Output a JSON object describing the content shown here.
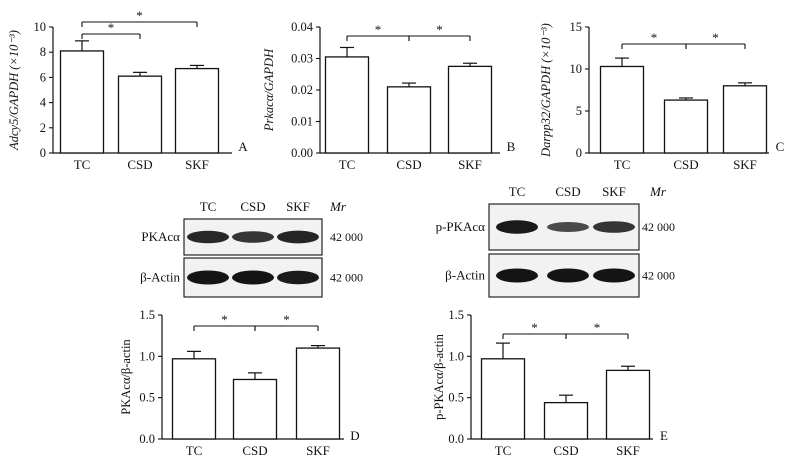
{
  "chart_data": [
    {
      "type": "bar",
      "panel_label": "A",
      "ylabel": "Adcy5/GAPDH (×10⁻³)",
      "categories": [
        "TC",
        "CSD",
        "SKF"
      ],
      "values": [
        8.1,
        6.1,
        6.7
      ],
      "errors": [
        0.8,
        0.3,
        0.25
      ],
      "ylim": [
        0,
        10
      ],
      "yticks": [
        "0",
        "2",
        "4",
        "6",
        "8",
        "10"
      ],
      "significance": [
        {
          "from": 0,
          "to": 1,
          "label": "*"
        },
        {
          "from": 0,
          "to": 2,
          "label": "*"
        }
      ]
    },
    {
      "type": "bar",
      "panel_label": "B",
      "ylabel": "Prkacα/GAPDH",
      "categories": [
        "TC",
        "CSD",
        "SKF"
      ],
      "values": [
        0.0305,
        0.021,
        0.0275
      ],
      "errors": [
        0.003,
        0.0012,
        0.001
      ],
      "ylim": [
        0,
        0.04
      ],
      "yticks": [
        "0.00",
        "0.01",
        "0.02",
        "0.03",
        "0.04"
      ],
      "significance": [
        {
          "from": 0,
          "to": 1,
          "label": "*"
        },
        {
          "from": 1,
          "to": 2,
          "label": "*"
        }
      ]
    },
    {
      "type": "bar",
      "panel_label": "C",
      "ylabel": "Darpp32/GAPDH (×10⁻³)",
      "categories": [
        "TC",
        "CSD",
        "SKF"
      ],
      "values": [
        10.3,
        6.3,
        8.0
      ],
      "errors": [
        1.0,
        0.25,
        0.35
      ],
      "ylim": [
        0,
        15
      ],
      "yticks": [
        "0",
        "5",
        "10",
        "15"
      ],
      "significance": [
        {
          "from": 0,
          "to": 1,
          "label": "*"
        },
        {
          "from": 1,
          "to": 2,
          "label": "*"
        }
      ]
    },
    {
      "type": "bar",
      "panel_label": "D",
      "ylabel": "PKAcα/β-actin",
      "categories": [
        "TC",
        "CSD",
        "SKF"
      ],
      "values": [
        0.97,
        0.72,
        1.1
      ],
      "errors": [
        0.09,
        0.08,
        0.03
      ],
      "ylim": [
        0,
        1.5
      ],
      "yticks": [
        "0.0",
        "0.5",
        "1.0",
        "1.5"
      ],
      "significance": [
        {
          "from": 0,
          "to": 1,
          "label": "*"
        },
        {
          "from": 1,
          "to": 2,
          "label": "*"
        }
      ]
    },
    {
      "type": "bar",
      "panel_label": "E",
      "ylabel": "p-PKAcα/β-actin",
      "categories": [
        "TC",
        "CSD",
        "SKF"
      ],
      "values": [
        0.97,
        0.44,
        0.83
      ],
      "errors": [
        0.19,
        0.09,
        0.05
      ],
      "ylim": [
        0,
        1.5
      ],
      "yticks": [
        "0.0",
        "0.5",
        "1.0",
        "1.5"
      ],
      "significance": [
        {
          "from": 0,
          "to": 1,
          "label": "*"
        },
        {
          "from": 1,
          "to": 2,
          "label": "*"
        }
      ]
    }
  ],
  "blots": [
    {
      "id": "D",
      "lanes": [
        "TC",
        "CSD",
        "SKF"
      ],
      "mr_label": "Mr",
      "bands": [
        {
          "name": "PKAcα",
          "mr": "42 000",
          "intensity": [
            0.82,
            0.7,
            0.85
          ]
        },
        {
          "name": "β-Actin",
          "mr": "42 000",
          "intensity": [
            1.0,
            1.0,
            0.95
          ]
        }
      ]
    },
    {
      "id": "E",
      "lanes": [
        "TC",
        "CSD",
        "SKF"
      ],
      "mr_label": "Mr",
      "bands": [
        {
          "name": "p-PKAcα",
          "mr": "42 000",
          "intensity": [
            0.95,
            0.5,
            0.7
          ]
        },
        {
          "name": "β-Actin",
          "mr": "42 000",
          "intensity": [
            1.0,
            1.0,
            1.0
          ]
        }
      ]
    }
  ]
}
